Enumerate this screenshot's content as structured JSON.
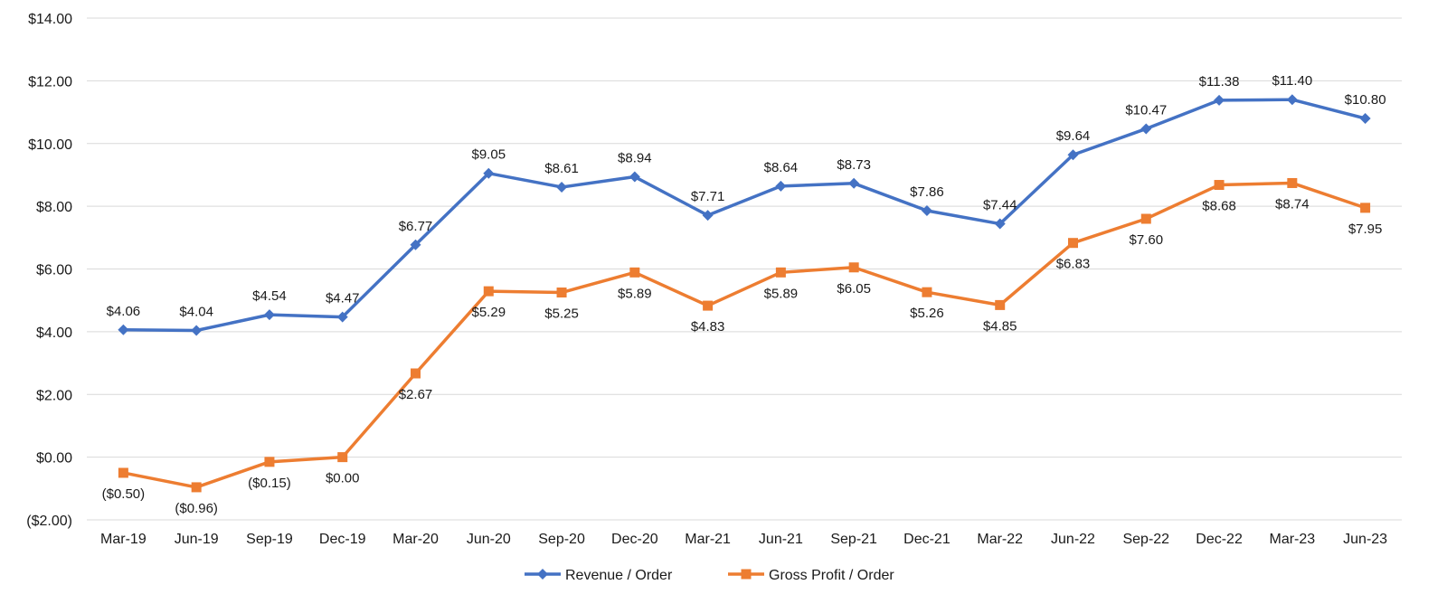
{
  "chart_data": {
    "type": "line",
    "categories": [
      "Mar-19",
      "Jun-19",
      "Sep-19",
      "Dec-19",
      "Mar-20",
      "Jun-20",
      "Sep-20",
      "Dec-20",
      "Mar-21",
      "Jun-21",
      "Sep-21",
      "Dec-21",
      "Mar-22",
      "Jun-22",
      "Sep-22",
      "Dec-22",
      "Mar-23",
      "Jun-23"
    ],
    "ylim": [
      -2,
      14
    ],
    "y_ticks": [
      14,
      12,
      10,
      8,
      6,
      4,
      2,
      0,
      -2
    ],
    "y_tick_labels": [
      "$14.00",
      "$12.00",
      "$10.00",
      "$8.00",
      "$6.00",
      "$4.00",
      "$2.00",
      "$0.00",
      "($2.00)"
    ],
    "grid": true,
    "legend_position": "bottom",
    "series": [
      {
        "name": "Revenue / Order",
        "color": "#4472C4",
        "marker": "diamond",
        "label_position": "above",
        "values": [
          4.06,
          4.04,
          4.54,
          4.47,
          6.77,
          9.05,
          8.61,
          8.94,
          7.71,
          8.64,
          8.73,
          7.86,
          7.44,
          9.64,
          10.47,
          11.38,
          11.4,
          10.8
        ],
        "labels": [
          "$4.06",
          "$4.04",
          "$4.54",
          "$4.47",
          "$6.77",
          "$9.05",
          "$8.61",
          "$8.94",
          "$7.71",
          "$8.64",
          "$8.73",
          "$7.86",
          "$7.44",
          "$9.64",
          "$10.47",
          "$11.38",
          "$11.40",
          "$10.80"
        ]
      },
      {
        "name": "Gross Profit / Order",
        "color": "#ED7D31",
        "marker": "square",
        "label_position": "below",
        "values": [
          -0.5,
          -0.96,
          -0.15,
          0.0,
          2.67,
          5.29,
          5.25,
          5.89,
          4.83,
          5.89,
          6.05,
          5.26,
          4.85,
          6.83,
          7.6,
          8.68,
          8.74,
          7.95
        ],
        "labels": [
          "($0.50)",
          "($0.96)",
          "($0.15)",
          "$0.00",
          "$2.67",
          "$5.29",
          "$5.25",
          "$5.89",
          "$4.83",
          "$5.89",
          "$6.05",
          "$5.26",
          "$4.85",
          "$6.83",
          "$7.60",
          "$8.68",
          "$8.74",
          "$7.95"
        ]
      }
    ]
  }
}
